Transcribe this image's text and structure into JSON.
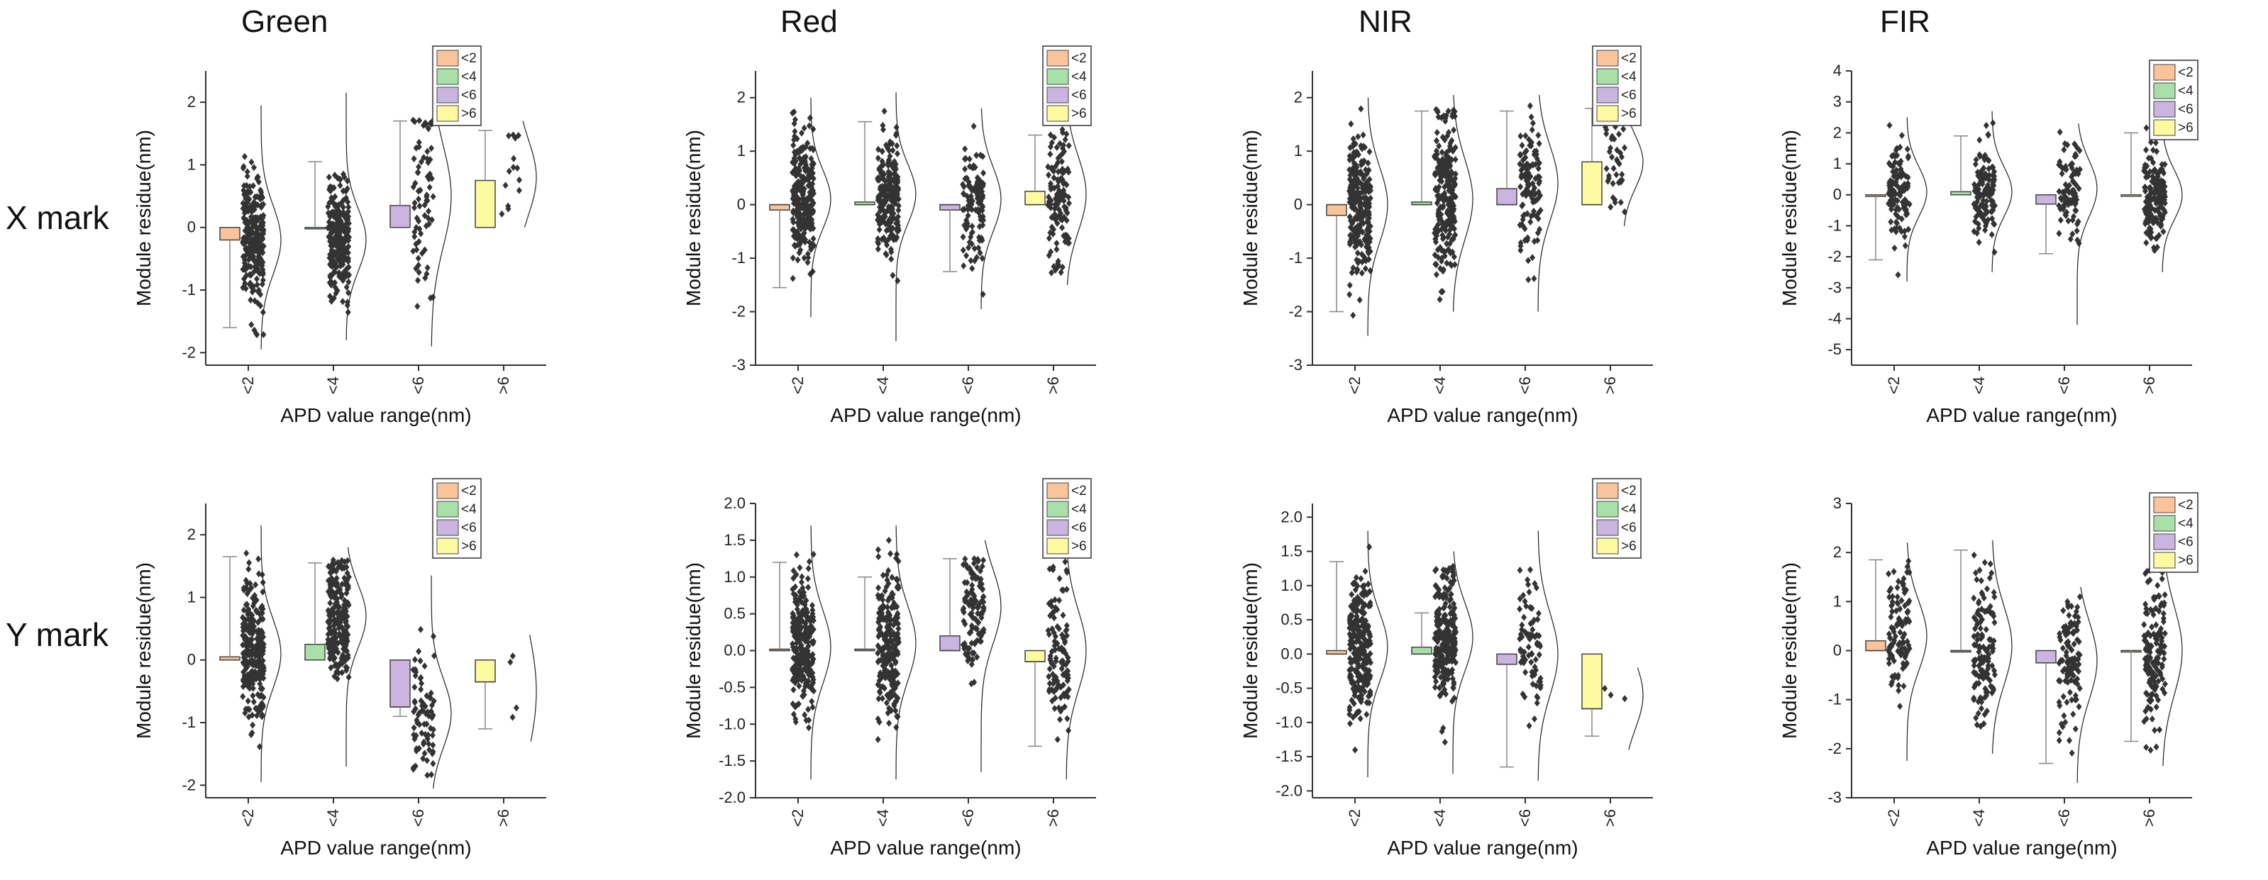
{
  "row_labels": [
    "X mark",
    "Y mark"
  ],
  "chart_data": [
    {
      "id": "xg",
      "title": "Green",
      "row": "X mark",
      "type": "box",
      "xlabel": "APD value range(nm)",
      "ylabel": "Module residue(nm)",
      "ylim": [
        -2.2,
        2.5
      ],
      "yticks": [
        -2,
        -1,
        0,
        1,
        2
      ],
      "categories": [
        "<2",
        "<4",
        "<6",
        ">6"
      ],
      "legend": [
        "<2",
        "<4",
        "<6",
        ">6"
      ],
      "boxes": [
        {
          "q1": -0.2,
          "median": 0,
          "q3": 0,
          "wlo": -1.6,
          "whi": null,
          "dmin": -1.75,
          "dmax": 1.75,
          "n": 260,
          "mode": -0.2,
          "spread": 0.55
        },
        {
          "q1": 0,
          "median": 0,
          "q3": 0,
          "wlo": null,
          "whi": 1.05,
          "dmin": -1.6,
          "dmax": 1.95,
          "n": 230,
          "mode": -0.2,
          "spread": 0.5
        },
        {
          "q1": 0,
          "median": 0,
          "q3": 0.35,
          "wlo": null,
          "whi": 1.7,
          "dmin": -1.7,
          "dmax": 1.75,
          "n": 75,
          "mode": 0.5,
          "spread": 0.8
        },
        {
          "q1": 0,
          "median": 0,
          "q3": 0.75,
          "wlo": null,
          "whi": 1.55,
          "dmin": 0.2,
          "dmax": 1.5,
          "n": 14,
          "mode": 0.8,
          "spread": 0.6
        }
      ]
    },
    {
      "id": "xr",
      "title": "Red",
      "row": "X mark",
      "type": "box",
      "xlabel": "APD value range(nm)",
      "ylabel": "Module residue(nm)",
      "ylim": [
        -3,
        2.5
      ],
      "yticks": [
        -3,
        -2,
        -1,
        0,
        1,
        2
      ],
      "categories": [
        "<2",
        "<4",
        "<6",
        ">6"
      ],
      "legend": [
        "<2",
        "<4",
        "<6",
        ">6"
      ],
      "boxes": [
        {
          "q1": -0.1,
          "median": 0,
          "q3": 0,
          "wlo": -1.55,
          "whi": null,
          "dmin": -1.9,
          "dmax": 1.8,
          "n": 260,
          "mode": 0.1,
          "spread": 0.55
        },
        {
          "q1": 0,
          "median": 0,
          "q3": 0.05,
          "wlo": null,
          "whi": 1.55,
          "dmin": -2.35,
          "dmax": 1.9,
          "n": 220,
          "mode": 0.2,
          "spread": 0.55
        },
        {
          "q1": -0.1,
          "median": 0,
          "q3": 0,
          "wlo": -1.25,
          "whi": null,
          "dmin": -1.75,
          "dmax": 1.6,
          "n": 120,
          "mode": 0.1,
          "spread": 0.6
        },
        {
          "q1": 0,
          "median": 0,
          "q3": 0.25,
          "wlo": null,
          "whi": 1.3,
          "dmin": -1.3,
          "dmax": 1.8,
          "n": 120,
          "mode": 0.2,
          "spread": 0.7
        }
      ]
    },
    {
      "id": "xn",
      "title": "NIR",
      "row": "X mark",
      "type": "box",
      "xlabel": "APD value range(nm)",
      "ylabel": "Module residue(nm)",
      "ylim": [
        -3,
        2.5
      ],
      "yticks": [
        -3,
        -2,
        -1,
        0,
        1,
        2
      ],
      "categories": [
        "<2",
        "<4",
        "<6",
        ">6"
      ],
      "legend": [
        "<2",
        "<4",
        "<6",
        ">6"
      ],
      "boxes": [
        {
          "q1": -0.2,
          "median": 0,
          "q3": 0,
          "wlo": -2.0,
          "whi": null,
          "dmin": -2.25,
          "dmax": 1.8,
          "n": 260,
          "mode": 0,
          "spread": 0.7
        },
        {
          "q1": 0,
          "median": 0,
          "q3": 0.05,
          "wlo": null,
          "whi": 1.75,
          "dmin": -1.8,
          "dmax": 1.85,
          "n": 230,
          "mode": 0.1,
          "spread": 0.75
        },
        {
          "q1": 0,
          "median": 0,
          "q3": 0.3,
          "wlo": null,
          "whi": 1.75,
          "dmin": -1.8,
          "dmax": 1.85,
          "n": 110,
          "mode": 0.4,
          "spread": 0.7
        },
        {
          "q1": 0,
          "median": 0,
          "q3": 0.8,
          "wlo": null,
          "whi": 1.8,
          "dmin": -0.2,
          "dmax": 1.6,
          "n": 40,
          "mode": 0.8,
          "spread": 0.5
        }
      ]
    },
    {
      "id": "xf",
      "title": "FIR",
      "row": "X mark",
      "type": "box",
      "xlabel": "APD value range(nm)",
      "ylabel": "Module residue(nm)",
      "ylim": [
        -5.5,
        4
      ],
      "yticks": [
        -5,
        -4,
        -3,
        -2,
        -1,
        0,
        1,
        2,
        3,
        4
      ],
      "categories": [
        "<2",
        "<4",
        "<6",
        ">6"
      ],
      "legend": [
        "<2",
        "<4",
        "<6",
        ">6"
      ],
      "boxes": [
        {
          "q1": -0.05,
          "median": 0,
          "q3": 0,
          "wlo": -2.1,
          "whi": null,
          "dmin": -2.6,
          "dmax": 2.3,
          "n": 110,
          "mode": 0.1,
          "spread": 0.8
        },
        {
          "q1": 0,
          "median": 0,
          "q3": 0.1,
          "wlo": null,
          "whi": 1.9,
          "dmin": -2.3,
          "dmax": 2.5,
          "n": 130,
          "mode": 0.1,
          "spread": 0.8
        },
        {
          "q1": -0.3,
          "median": 0,
          "q3": 0,
          "wlo": -1.9,
          "whi": null,
          "dmin": -4.0,
          "dmax": 2.1,
          "n": 90,
          "mode": 0.2,
          "spread": 0.9
        },
        {
          "q1": 0,
          "median": 0,
          "q3": 0,
          "wlo": null,
          "whi": 2.0,
          "dmin": -2.3,
          "dmax": 2.4,
          "n": 160,
          "mode": 0,
          "spread": 0.8
        }
      ]
    },
    {
      "id": "yg",
      "title": "",
      "row": "Y mark",
      "type": "box",
      "xlabel": "APD value range(nm)",
      "ylabel": "Module residue(nm)",
      "ylim": [
        -2.2,
        2.5
      ],
      "yticks": [
        -2,
        -1,
        0,
        1,
        2
      ],
      "categories": [
        "<2",
        "<4",
        "<6",
        ">6"
      ],
      "legend": [
        "<2",
        "<4",
        "<6",
        ">6"
      ],
      "boxes": [
        {
          "q1": 0,
          "median": 0,
          "q3": 0.05,
          "wlo": null,
          "whi": 1.65,
          "dmin": -1.75,
          "dmax": 1.95,
          "n": 260,
          "mode": 0.1,
          "spread": 0.55
        },
        {
          "q1": 0,
          "median": 0,
          "q3": 0.25,
          "wlo": null,
          "whi": 1.55,
          "dmin": -1.5,
          "dmax": 1.6,
          "n": 230,
          "mode": 0.7,
          "spread": 0.5
        },
        {
          "q1": -0.75,
          "median": -0.75,
          "q3": 0,
          "wlo": -0.9,
          "whi": null,
          "dmin": -1.85,
          "dmax": 1.15,
          "n": 75,
          "mode": -0.85,
          "spread": 0.55
        },
        {
          "q1": -0.35,
          "median": -0.35,
          "q3": 0,
          "wlo": -1.1,
          "whi": null,
          "dmin": -1.1,
          "dmax": 0.2,
          "n": 4,
          "mode": -0.5,
          "spread": 1.0
        }
      ]
    },
    {
      "id": "yr",
      "title": "",
      "row": "Y mark",
      "type": "box",
      "xlabel": "APD value range(nm)",
      "ylabel": "Module residue(nm)",
      "ylim": [
        -2.0,
        2.0
      ],
      "yticks": [
        -2.0,
        -1.5,
        -1.0,
        -0.5,
        0.0,
        0.5,
        1.0,
        1.5,
        2.0
      ],
      "categories": [
        "<2",
        "<4",
        "<6",
        ">6"
      ],
      "legend": [
        "<2",
        "<4",
        "<6",
        ">6"
      ],
      "boxes": [
        {
          "q1": 0,
          "median": 0,
          "q3": 0.02,
          "wlo": null,
          "whi": 1.2,
          "dmin": -1.55,
          "dmax": 1.5,
          "n": 260,
          "mode": 0.05,
          "spread": 0.5
        },
        {
          "q1": 0,
          "median": 0,
          "q3": 0.02,
          "wlo": null,
          "whi": 1.0,
          "dmin": -1.55,
          "dmax": 1.5,
          "n": 230,
          "mode": 0.1,
          "spread": 0.5
        },
        {
          "q1": 0,
          "median": 0,
          "q3": 0.2,
          "wlo": null,
          "whi": 1.25,
          "dmin": -1.45,
          "dmax": 1.3,
          "n": 110,
          "mode": 0.6,
          "spread": 0.5
        },
        {
          "q1": -0.15,
          "median": -0.15,
          "q3": 0,
          "wlo": -1.3,
          "whi": null,
          "dmin": -1.55,
          "dmax": 1.25,
          "n": 110,
          "mode": 0,
          "spread": 0.55
        }
      ]
    },
    {
      "id": "yn",
      "title": "",
      "row": "Y mark",
      "type": "box",
      "xlabel": "APD value range(nm)",
      "ylabel": "Module residue(nm)",
      "ylim": [
        -2.1,
        2.2
      ],
      "yticks": [
        -2.0,
        -1.5,
        -1.0,
        -0.5,
        0.0,
        0.5,
        1.0,
        1.5,
        2.0
      ],
      "categories": [
        "<2",
        "<4",
        "<6",
        ">6"
      ],
      "legend": [
        "<2",
        "<4",
        "<6",
        ">6"
      ],
      "boxes": [
        {
          "q1": 0,
          "median": 0,
          "q3": 0.05,
          "wlo": null,
          "whi": 1.35,
          "dmin": -1.6,
          "dmax": 1.6,
          "n": 260,
          "mode": 0.1,
          "spread": 0.5
        },
        {
          "q1": 0,
          "median": 0,
          "q3": 0.1,
          "wlo": null,
          "whi": 0.6,
          "dmin": -1.55,
          "dmax": 1.3,
          "n": 230,
          "mode": 0.25,
          "spread": 0.5
        },
        {
          "q1": -0.15,
          "median": -0.15,
          "q3": 0,
          "wlo": -1.65,
          "whi": null,
          "dmin": -1.65,
          "dmax": 1.6,
          "n": 80,
          "mode": 0,
          "spread": 0.6
        },
        {
          "q1": -0.8,
          "median": -0.8,
          "q3": 0,
          "wlo": -1.2,
          "whi": null,
          "dmin": -1.2,
          "dmax": -0.4,
          "n": 3,
          "mode": -0.6,
          "spread": 0.5
        }
      ]
    },
    {
      "id": "yf",
      "title": "",
      "row": "Y mark",
      "type": "box",
      "xlabel": "APD value range(nm)",
      "ylabel": "Module residue(nm)",
      "ylim": [
        -3,
        3
      ],
      "yticks": [
        -3,
        -2,
        -1,
        0,
        1,
        2,
        3
      ],
      "categories": [
        "<2",
        "<4",
        "<6",
        ">6"
      ],
      "legend": [
        "<2",
        "<4",
        "<6",
        ">6"
      ],
      "boxes": [
        {
          "q1": 0,
          "median": 0,
          "q3": 0.2,
          "wlo": null,
          "whi": 1.85,
          "dmin": -2.05,
          "dmax": 2.0,
          "n": 110,
          "mode": 0.3,
          "spread": 0.7
        },
        {
          "q1": 0,
          "median": 0,
          "q3": 0,
          "wlo": null,
          "whi": 2.05,
          "dmin": -1.9,
          "dmax": 2.05,
          "n": 130,
          "mode": 0.1,
          "spread": 0.8
        },
        {
          "q1": -0.25,
          "median": -0.25,
          "q3": 0,
          "wlo": -2.3,
          "whi": null,
          "dmin": -2.5,
          "dmax": 1.1,
          "n": 110,
          "mode": -0.2,
          "spread": 0.8
        },
        {
          "q1": 0,
          "median": 0,
          "q3": 0,
          "wlo": -1.85,
          "whi": null,
          "dmin": -2.15,
          "dmax": 2.4,
          "n": 150,
          "mode": 0,
          "spread": 0.9
        }
      ]
    }
  ],
  "colors": {
    "lt2": "#f9c49a",
    "lt4": "#a8e0a8",
    "lt6": "#c9b5e0",
    "gt6": "#fdfaa0",
    "points": "#333333",
    "axis": "#333333",
    "whisker": "#888888"
  }
}
